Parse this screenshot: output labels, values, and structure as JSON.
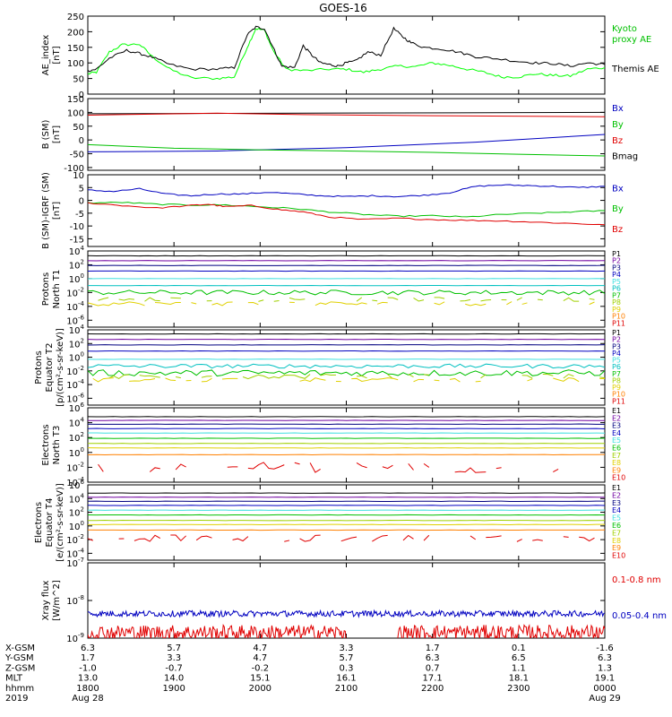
{
  "title": "GOES-16",
  "colors": {
    "axis": "#000000",
    "blue": "#0000c0",
    "red": "#e00000",
    "green": "#00c000",
    "bright_green": "#00ff00",
    "navy": "#000080",
    "purple": "#7000a0",
    "cyan": "#00c0c0",
    "lightcyan": "#40e0e0",
    "yellowgreen": "#a0d000",
    "yellow": "#e0d000",
    "orange": "#ff8000",
    "darkred": "#a00000"
  },
  "chart_data": [
    {
      "id": "ae",
      "type": "line",
      "ylabel": [
        "AE_index",
        "[nT]"
      ],
      "ylim": [
        0,
        250
      ],
      "yticks": [
        "0",
        "50",
        "100",
        "150",
        "200",
        "250"
      ],
      "legend": [
        {
          "text": "Kyoto",
          "color": "#00c000"
        },
        {
          "text": "proxy AE",
          "color": "#00c000"
        },
        {
          "text": "Themis AE",
          "color": "#000000"
        }
      ],
      "series": [
        {
          "name": "Kyoto proxy AE",
          "color": "#00ff00",
          "x": [
            18.0,
            18.1,
            18.25,
            18.4,
            18.6,
            18.75,
            18.95,
            19.2,
            19.5,
            19.7,
            19.85,
            19.95,
            20.05,
            20.15,
            20.3,
            20.5,
            20.8,
            21.0,
            21.2,
            21.4,
            21.6,
            21.8,
            22.0,
            22.2,
            22.4,
            22.6,
            22.8,
            23.0,
            23.2,
            23.4,
            23.6,
            23.8,
            24.0
          ],
          "y": [
            65,
            70,
            135,
            158,
            160,
            120,
            80,
            52,
            50,
            55,
            150,
            210,
            205,
            140,
            80,
            75,
            80,
            80,
            70,
            80,
            90,
            88,
            100,
            92,
            80,
            70,
            55,
            55,
            65,
            60,
            58,
            80,
            85
          ]
        },
        {
          "name": "Themis AE",
          "color": "#000000",
          "x": [
            18.0,
            18.1,
            18.25,
            18.45,
            18.6,
            18.75,
            18.95,
            19.2,
            19.5,
            19.7,
            19.85,
            19.95,
            20.05,
            20.15,
            20.25,
            20.4,
            20.5,
            20.6,
            20.7,
            20.8,
            20.9,
            21.0,
            21.1,
            21.25,
            21.4,
            21.55,
            21.65,
            21.75,
            21.9,
            22.1,
            22.3,
            22.5,
            22.7,
            23.0,
            23.2,
            23.4,
            23.6,
            23.8,
            24.0
          ],
          "y": [
            75,
            80,
            115,
            140,
            130,
            118,
            95,
            80,
            80,
            85,
            190,
            215,
            210,
            150,
            90,
            85,
            155,
            125,
            100,
            95,
            90,
            100,
            105,
            135,
            125,
            210,
            185,
            165,
            150,
            145,
            135,
            120,
            115,
            105,
            100,
            98,
            90,
            100,
            95
          ]
        }
      ]
    },
    {
      "id": "bsm",
      "type": "line",
      "ylabel": [
        "B (SM)",
        "[nT]"
      ],
      "ylim": [
        -110,
        150
      ],
      "yticks": [
        "-100",
        "-50",
        "0",
        "50",
        "100",
        "150"
      ],
      "ytick_values": [
        -100,
        -50,
        0,
        50,
        100,
        150
      ],
      "legend": [
        {
          "text": "Bx",
          "color": "#0000c0"
        },
        {
          "text": "By",
          "color": "#00c000"
        },
        {
          "text": "Bz",
          "color": "#e00000"
        },
        {
          "text": "Bmag",
          "color": "#000000"
        }
      ],
      "series": [
        {
          "name": "Bmag",
          "color": "#000000",
          "x": [
            18.0,
            24.0
          ],
          "y": [
            95,
            100
          ]
        },
        {
          "name": "Bz",
          "color": "#e00000",
          "x": [
            18.0,
            19.5,
            20.5,
            22.0,
            24.0
          ],
          "y": [
            90,
            97,
            92,
            88,
            84
          ]
        },
        {
          "name": "Bx",
          "color": "#0000c0",
          "x": [
            18.0,
            19.5,
            21.0,
            22.5,
            24.0
          ],
          "y": [
            -43,
            -40,
            -28,
            -8,
            20
          ]
        },
        {
          "name": "By",
          "color": "#00c000",
          "x": [
            18.0,
            19.0,
            20.0,
            21.0,
            22.0,
            23.0,
            24.0
          ],
          "y": [
            -17,
            -30,
            -36,
            -40,
            -45,
            -52,
            -58
          ]
        }
      ]
    },
    {
      "id": "bigrf",
      "type": "line",
      "ylabel": [
        "B (SM)-IGRF (SM)",
        "[nT]"
      ],
      "ylim": [
        -18,
        10
      ],
      "yticks": [
        "-15",
        "-10",
        "-5",
        "0",
        "5",
        "10"
      ],
      "ytick_values": [
        -15,
        -10,
        -5,
        0,
        5,
        10
      ],
      "legend": [
        {
          "text": "Bx",
          "color": "#0000c0"
        },
        {
          "text": "By",
          "color": "#00c000"
        },
        {
          "text": "Bz",
          "color": "#e00000"
        }
      ],
      "series": [
        {
          "name": "Bx",
          "color": "#0000c0",
          "x": [
            18.0,
            18.3,
            18.6,
            18.9,
            19.2,
            19.5,
            19.8,
            20.1,
            20.4,
            20.7,
            21.0,
            21.3,
            21.6,
            21.9,
            22.2,
            22.5,
            22.8,
            23.1,
            23.4,
            23.7,
            24.0
          ],
          "y": [
            4,
            3.5,
            4.5,
            2.5,
            1.8,
            2.5,
            2.5,
            3.2,
            2.5,
            1.8,
            1.5,
            1.8,
            1.5,
            2,
            3,
            5.5,
            6,
            5.8,
            5.5,
            5,
            5.5
          ]
        },
        {
          "name": "By",
          "color": "#00c000",
          "x": [
            18.0,
            18.4,
            18.8,
            19.2,
            19.6,
            20.0,
            20.4,
            20.8,
            21.2,
            21.6,
            22.0,
            22.4,
            22.8,
            23.2,
            23.6,
            24.0
          ],
          "y": [
            -1,
            -0.8,
            -1.5,
            -1.8,
            -1.8,
            -2.5,
            -3.2,
            -4.5,
            -5.5,
            -6.2,
            -6,
            -6.5,
            -5.5,
            -5,
            -4.5,
            -4
          ]
        },
        {
          "name": "Bz",
          "color": "#e00000",
          "x": [
            18.0,
            18.4,
            18.8,
            19.2,
            19.4,
            19.6,
            19.9,
            20.2,
            20.5,
            20.8,
            21.2,
            21.6,
            22.0,
            22.4,
            22.8,
            23.2,
            23.6,
            24.0
          ],
          "y": [
            -1,
            -2,
            -3,
            -2,
            -1.5,
            -2.5,
            -2,
            -3.5,
            -4.5,
            -6.5,
            -7.5,
            -7,
            -7.5,
            -7.8,
            -8,
            -8.5,
            -9,
            -9.5
          ]
        }
      ]
    },
    {
      "id": "prot_n",
      "type": "line",
      "log": true,
      "ylabel": [
        "Protons",
        "North T1"
      ],
      "ylim_exp": [
        -7,
        4
      ],
      "yticks_exp": [
        -6,
        -4,
        -2,
        0,
        2,
        4
      ],
      "legend": [
        {
          "text": "P1",
          "color": "#000000"
        },
        {
          "text": "P2",
          "color": "#7000a0"
        },
        {
          "text": "P3",
          "color": "#000080"
        },
        {
          "text": "P4",
          "color": "#0000c0"
        },
        {
          "text": "P5",
          "color": "#40e0e0"
        },
        {
          "text": "P6",
          "color": "#00c0c0"
        },
        {
          "text": "P7",
          "color": "#00c000"
        },
        {
          "text": "P8",
          "color": "#a0d000"
        },
        {
          "text": "P9",
          "color": "#e0d000"
        },
        {
          "text": "P10",
          "color": "#ff8000"
        },
        {
          "text": "P11",
          "color": "#e00000"
        }
      ],
      "flat_levels": [
        {
          "exp": 3.3,
          "color": "#000000"
        },
        {
          "exp": 2.6,
          "color": "#7000a0"
        },
        {
          "exp": 1.9,
          "color": "#000080"
        },
        {
          "exp": 1.1,
          "color": "#0000c0"
        },
        {
          "exp": 0.0,
          "color": "#40e0e0"
        },
        {
          "exp": -1.0,
          "color": "#00c0c0"
        }
      ],
      "noisy_levels": [
        {
          "exp": -2.0,
          "color": "#00c000",
          "amp": 0.35,
          "gaps": false
        },
        {
          "exp": -3.0,
          "color": "#a0d000",
          "amp": 0.3,
          "gaps": true
        },
        {
          "exp": -3.6,
          "color": "#e0d000",
          "amp": 0.3,
          "gaps": true
        }
      ]
    },
    {
      "id": "prot_e",
      "type": "line",
      "log": true,
      "ylabel": [
        "Protons",
        "Equator T2",
        "[p/(cm²-s-sr-keV)]"
      ],
      "ylim_exp": [
        -7,
        4
      ],
      "yticks_exp": [
        -6,
        -4,
        -2,
        0,
        2,
        4
      ],
      "legend": [
        {
          "text": "P1",
          "color": "#000000"
        },
        {
          "text": "P2",
          "color": "#7000a0"
        },
        {
          "text": "P3",
          "color": "#000080"
        },
        {
          "text": "P4",
          "color": "#0000c0"
        },
        {
          "text": "P5",
          "color": "#40e0e0"
        },
        {
          "text": "P6",
          "color": "#00c0c0"
        },
        {
          "text": "P7",
          "color": "#00c000"
        },
        {
          "text": "P8",
          "color": "#a0d000"
        },
        {
          "text": "P9",
          "color": "#e0d000"
        },
        {
          "text": "P10",
          "color": "#ff8000"
        },
        {
          "text": "P11",
          "color": "#e00000"
        }
      ],
      "flat_levels": [
        {
          "exp": 3.4,
          "color": "#000000"
        },
        {
          "exp": 2.6,
          "color": "#7000a0"
        },
        {
          "exp": 1.8,
          "color": "#000080"
        },
        {
          "exp": 0.9,
          "color": "#0000c0"
        },
        {
          "exp": -0.3,
          "color": "#40e0e0"
        }
      ],
      "noisy_levels": [
        {
          "exp": -1.3,
          "color": "#00c0c0",
          "amp": 0.3,
          "gaps": false
        },
        {
          "exp": -2.3,
          "color": "#00c000",
          "amp": 0.45,
          "gaps": false
        },
        {
          "exp": -2.8,
          "color": "#a0d000",
          "amp": 0.35,
          "gaps": true
        },
        {
          "exp": -3.3,
          "color": "#e0d000",
          "amp": 0.3,
          "gaps": true
        }
      ]
    },
    {
      "id": "elec_n",
      "type": "line",
      "log": true,
      "ylabel": [
        "Electrons",
        "North T3"
      ],
      "ylim_exp": [
        -4,
        6
      ],
      "yticks_exp": [
        -4,
        -2,
        0,
        2,
        4,
        6
      ],
      "legend": [
        {
          "text": "E1",
          "color": "#000000"
        },
        {
          "text": "E2",
          "color": "#7000a0"
        },
        {
          "text": "E3",
          "color": "#000080"
        },
        {
          "text": "E4",
          "color": "#0000c0"
        },
        {
          "text": "E5",
          "color": "#40e0e0"
        },
        {
          "text": "E6",
          "color": "#00c000"
        },
        {
          "text": "E7",
          "color": "#a0d000"
        },
        {
          "text": "E8",
          "color": "#e0d000"
        },
        {
          "text": "E9",
          "color": "#ff8000"
        },
        {
          "text": "E10",
          "color": "#e00000"
        }
      ],
      "flat_levels": [
        {
          "exp": 4.8,
          "color": "#000000"
        },
        {
          "exp": 4.3,
          "color": "#7000a0"
        },
        {
          "exp": 3.8,
          "color": "#000080"
        },
        {
          "exp": 3.2,
          "color": "#0000c0"
        },
        {
          "exp": 2.6,
          "color": "#40e0e0"
        },
        {
          "exp": 1.9,
          "color": "#00c000"
        },
        {
          "exp": 1.2,
          "color": "#a0d000"
        },
        {
          "exp": 0.6,
          "color": "#e0d000"
        },
        {
          "exp": -0.3,
          "color": "#ff8000"
        }
      ],
      "noisy_levels": [
        {
          "exp": -2.0,
          "color": "#e00000",
          "amp": 0.7,
          "gaps": true
        }
      ]
    },
    {
      "id": "elec_e",
      "type": "line",
      "log": true,
      "ylabel": [
        "Electrons",
        "Equator T4",
        "[e/(cm²-s-sr-keV)]"
      ],
      "ylim_exp": [
        -5,
        6
      ],
      "yticks_exp": [
        -4,
        -2,
        0,
        2,
        4,
        6
      ],
      "legend": [
        {
          "text": "E1",
          "color": "#000000"
        },
        {
          "text": "E2",
          "color": "#7000a0"
        },
        {
          "text": "E3",
          "color": "#000080"
        },
        {
          "text": "E4",
          "color": "#0000c0"
        },
        {
          "text": "E5",
          "color": "#40e0e0"
        },
        {
          "text": "E6",
          "color": "#00c000"
        },
        {
          "text": "E7",
          "color": "#a0d000"
        },
        {
          "text": "E8",
          "color": "#e0d000"
        },
        {
          "text": "E9",
          "color": "#ff8000"
        },
        {
          "text": "E10",
          "color": "#e00000"
        }
      ],
      "flat_levels": [
        {
          "exp": 4.8,
          "color": "#000000"
        },
        {
          "exp": 4.2,
          "color": "#7000a0"
        },
        {
          "exp": 3.6,
          "color": "#000080"
        },
        {
          "exp": 3.0,
          "color": "#0000c0"
        },
        {
          "exp": 2.3,
          "color": "#40e0e0"
        },
        {
          "exp": 1.6,
          "color": "#00c000"
        },
        {
          "exp": 0.8,
          "color": "#a0d000"
        },
        {
          "exp": 0.2,
          "color": "#e0d000"
        },
        {
          "exp": -0.6,
          "color": "#ff8000"
        }
      ],
      "noisy_levels": [
        {
          "exp": -1.8,
          "color": "#e00000",
          "amp": 0.5,
          "gaps": true
        }
      ]
    },
    {
      "id": "xray",
      "type": "line",
      "log": true,
      "ylabel": [
        "Xray flux",
        "[W/m^2]"
      ],
      "ylim_exp": [
        -9,
        -7
      ],
      "yticks_exp": [
        -9,
        -8,
        -7
      ],
      "legend": [
        {
          "text": "0.1-0.8 nm",
          "color": "#e00000"
        },
        {
          "text": "0.05-0.4 nm",
          "color": "#0000c0"
        }
      ],
      "noisy_levels": [
        {
          "exp": -8.35,
          "color": "#0000c0",
          "amp": 0.08,
          "gaps": false,
          "dense": true
        },
        {
          "exp": -8.85,
          "color": "#e00000",
          "amp": 0.2,
          "gaps": false,
          "dense": true,
          "clip_low": true
        }
      ]
    }
  ],
  "xaxis": {
    "ticks_x": [
      18.0,
      19.0,
      20.0,
      21.0,
      22.0,
      23.0,
      24.0
    ],
    "rows": [
      {
        "label": "X-GSM",
        "values": [
          "6.3",
          "5.7",
          "4.7",
          "3.3",
          "1.7",
          "0.1",
          "-1.6"
        ]
      },
      {
        "label": "Y-GSM",
        "values": [
          "1.7",
          "3.3",
          "4.7",
          "5.7",
          "6.3",
          "6.5",
          "6.3"
        ]
      },
      {
        "label": "Z-GSM",
        "values": [
          "-1.0",
          "-0.7",
          "-0.2",
          "0.3",
          "0.7",
          "1.1",
          "1.3"
        ]
      },
      {
        "label": "MLT",
        "values": [
          "13.0",
          "14.0",
          "15.1",
          "16.1",
          "17.1",
          "18.1",
          "19.1"
        ]
      },
      {
        "label": "hhmm",
        "values": [
          "1800",
          "1900",
          "2000",
          "2100",
          "2200",
          "2300",
          "0000"
        ]
      }
    ],
    "date_row": {
      "label": "2019",
      "left": "Aug 28",
      "right": "Aug 29"
    }
  }
}
